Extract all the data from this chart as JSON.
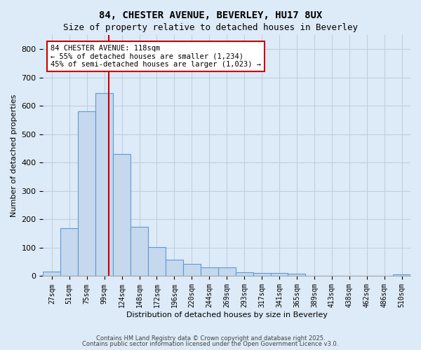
{
  "title_line1": "84, CHESTER AVENUE, BEVERLEY, HU17 8UX",
  "title_line2": "Size of property relative to detached houses in Beverley",
  "xlabel": "Distribution of detached houses by size in Beverley",
  "ylabel": "Number of detached properties",
  "annotation_line1": "84 CHESTER AVENUE: 118sqm",
  "annotation_line2": "← 55% of detached houses are smaller (1,234)",
  "annotation_line3": "45% of semi-detached houses are larger (1,023) →",
  "property_size": 118,
  "bin_labels": [
    "27sqm",
    "51sqm",
    "75sqm",
    "99sqm",
    "124sqm",
    "148sqm",
    "172sqm",
    "196sqm",
    "220sqm",
    "244sqm",
    "269sqm",
    "293sqm",
    "317sqm",
    "341sqm",
    "365sqm",
    "389sqm",
    "413sqm",
    "438sqm",
    "462sqm",
    "486sqm",
    "510sqm"
  ],
  "heights": [
    15,
    168,
    580,
    645,
    430,
    175,
    103,
    57,
    42,
    31,
    30,
    13,
    10,
    10,
    8,
    0,
    0,
    0,
    0,
    0,
    7
  ],
  "bar_color": "#c5d8ed",
  "bar_edge_color": "#5b9bd5",
  "red_line_color": "#cc0000",
  "annotation_box_edge_color": "#cc0000",
  "annotation_box_face_color": "#ffffff",
  "grid_color": "#c0cfe0",
  "background_color": "#ddeaf7",
  "ylim": [
    0,
    850
  ],
  "yticks": [
    0,
    100,
    200,
    300,
    400,
    500,
    600,
    700,
    800
  ],
  "red_line_x": 3.26,
  "footer_line1": "Contains HM Land Registry data © Crown copyright and database right 2025.",
  "footer_line2": "Contains public sector information licensed under the Open Government Licence v3.0."
}
